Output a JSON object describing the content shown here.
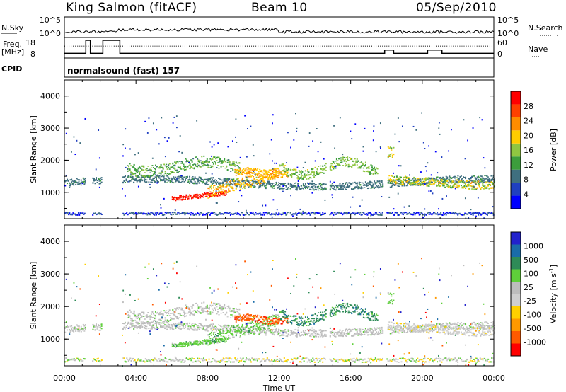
{
  "header": {
    "station": "King Salmon (fitACF)",
    "beam": "Beam 10",
    "date": "05/Sep/2010"
  },
  "sidepanel": {
    "nsky_label": "N.Sky",
    "nsearch_label": "N.Search",
    "freq_label": "Freq.",
    "freq_unit": "[MHz]",
    "nave_label": "Nave",
    "cpid_label": "CPID",
    "nsky_ticks": [
      "10^5",
      "10^0"
    ],
    "nsearch_ticks": [
      "10^5",
      "10^0"
    ],
    "freq_ticks": [
      "18",
      "8"
    ],
    "nave_ticks": [
      "60",
      "0"
    ],
    "cpid_value": "normalsound (fast) 157"
  },
  "colors": {
    "power_scale": [
      "#0000ff",
      "#2040c0",
      "#3f6f7f",
      "#3c9d3c",
      "#8fc641",
      "#ffcc00",
      "#ff8c00",
      "#ff4000",
      "#ff0000"
    ],
    "velocity_scale": [
      "#2222cc",
      "#1a6ca8",
      "#2e8b57",
      "#5fcf3a",
      "#bdbdbd",
      "#cfcfcf",
      "#ffd000",
      "#ff9900",
      "#ff5a00",
      "#ff0000"
    ]
  },
  "chart_data": [
    {
      "type": "line",
      "panel": "noise",
      "x_range_hours": [
        0,
        24
      ],
      "series": [
        {
          "name": "N.Sky",
          "style": "solid",
          "description_level": "low"
        },
        {
          "name": "N.Search",
          "style": "dotted",
          "description_level": "low"
        }
      ],
      "y_ticks_left": [
        "10^5",
        "10^0"
      ],
      "y_ticks_right": [
        "10^5",
        "10^0"
      ]
    },
    {
      "type": "line",
      "panel": "frequency_nave",
      "freq_ylim": [
        8,
        18
      ],
      "nave_ylim": [
        0,
        60
      ],
      "freq_series": {
        "x": [
          0.0,
          1.2,
          1.2,
          1.45,
          1.45,
          2.15,
          2.15,
          3.1,
          3.1,
          17.9,
          17.9,
          18.4,
          18.4,
          20.3,
          20.3,
          21.1,
          21.1,
          24.0
        ],
        "y": [
          10,
          10,
          18,
          18,
          10,
          10,
          18,
          18,
          10,
          10,
          12,
          12,
          10,
          10,
          12,
          12,
          10,
          10
        ]
      },
      "nave_level": 40
    },
    {
      "type": "heatmap",
      "panel": "power",
      "title": "",
      "ylabel": "Slant Range [km]",
      "xlabel": "",
      "ylim": [
        180,
        4500
      ],
      "yticks": [
        1000,
        2000,
        3000,
        4000
      ],
      "colorbar_label": "Power [dB]",
      "colorbar_ticks": [
        4,
        8,
        12,
        16,
        20,
        24,
        28
      ],
      "colorbar_range": [
        0,
        32
      ]
    },
    {
      "type": "heatmap",
      "panel": "velocity",
      "title": "",
      "ylabel": "Slant Range [km]",
      "xlabel": "Time UT",
      "ylim": [
        180,
        4500
      ],
      "yticks": [
        1000,
        2000,
        3000,
        4000
      ],
      "xticks": [
        "00:00",
        "04:00",
        "08:00",
        "12:00",
        "16:00",
        "20:00",
        "00:00"
      ],
      "colorbar_label": "Velocity [m s",
      "colorbar_label_sup": "-1",
      "colorbar_label_end": "]",
      "colorbar_ticks": [
        1000,
        500,
        100,
        25,
        -25,
        -100,
        -500,
        -1000
      ]
    }
  ]
}
